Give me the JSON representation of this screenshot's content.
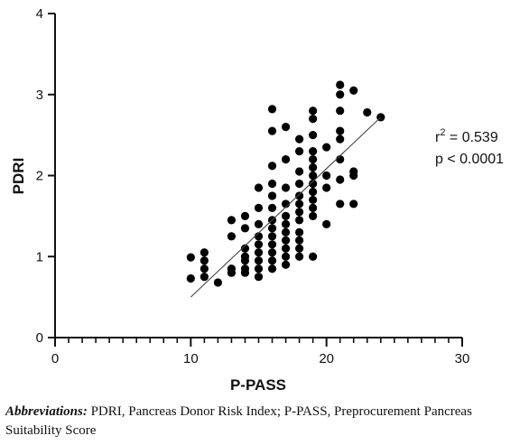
{
  "chart_data": {
    "type": "scatter",
    "xlabel": "P-PASS",
    "ylabel": "PDRI",
    "xlim": [
      0,
      30
    ],
    "ylim": [
      0,
      4
    ],
    "x_ticks": [
      0,
      10,
      20,
      30
    ],
    "y_ticks": [
      0,
      1,
      2,
      3,
      4
    ],
    "x_minor_step": 1,
    "grid": false,
    "points": [
      [
        10,
        0.99
      ],
      [
        10,
        0.73
      ],
      [
        11,
        1.05
      ],
      [
        11,
        0.95
      ],
      [
        11,
        0.85
      ],
      [
        11,
        0.75
      ],
      [
        12,
        0.68
      ],
      [
        13,
        1.45
      ],
      [
        13,
        1.25
      ],
      [
        13,
        0.85
      ],
      [
        13,
        0.8
      ],
      [
        14,
        1.5
      ],
      [
        14,
        1.35
      ],
      [
        14,
        1.1
      ],
      [
        14,
        1.0
      ],
      [
        14,
        0.95
      ],
      [
        14,
        0.85
      ],
      [
        14,
        0.8
      ],
      [
        15,
        1.85
      ],
      [
        15,
        1.6
      ],
      [
        15,
        1.4
      ],
      [
        15,
        1.25
      ],
      [
        15,
        1.15
      ],
      [
        15,
        1.05
      ],
      [
        15,
        0.95
      ],
      [
        15,
        0.85
      ],
      [
        15,
        0.75
      ],
      [
        16,
        2.82
      ],
      [
        16,
        2.55
      ],
      [
        16,
        2.12
      ],
      [
        16,
        1.9
      ],
      [
        16,
        1.75
      ],
      [
        16,
        1.6
      ],
      [
        16,
        1.45
      ],
      [
        16,
        1.35
      ],
      [
        16,
        1.25
      ],
      [
        16,
        1.15
      ],
      [
        16,
        1.05
      ],
      [
        16,
        0.95
      ],
      [
        16,
        0.85
      ],
      [
        17,
        2.6
      ],
      [
        17,
        2.2
      ],
      [
        17,
        1.85
      ],
      [
        17,
        1.65
      ],
      [
        17,
        1.5
      ],
      [
        17,
        1.4
      ],
      [
        17,
        1.3
      ],
      [
        17,
        1.2
      ],
      [
        17,
        1.1
      ],
      [
        17,
        1.0
      ],
      [
        17,
        0.9
      ],
      [
        18,
        2.45
      ],
      [
        18,
        2.3
      ],
      [
        18,
        2.05
      ],
      [
        18,
        1.9
      ],
      [
        18,
        1.75
      ],
      [
        18,
        1.65
      ],
      [
        18,
        1.55
      ],
      [
        18,
        1.45
      ],
      [
        18,
        1.3
      ],
      [
        18,
        1.2
      ],
      [
        18,
        1.1
      ],
      [
        18,
        1.0
      ],
      [
        19,
        2.8
      ],
      [
        19,
        2.7
      ],
      [
        19,
        2.5
      ],
      [
        19,
        2.3
      ],
      [
        19,
        2.2
      ],
      [
        19,
        2.1
      ],
      [
        19,
        2.0
      ],
      [
        19,
        1.9
      ],
      [
        19,
        1.8
      ],
      [
        19,
        1.7
      ],
      [
        19,
        1.6
      ],
      [
        19,
        1.5
      ],
      [
        19,
        1.0
      ],
      [
        20,
        2.35
      ],
      [
        20,
        2.0
      ],
      [
        20,
        1.85
      ],
      [
        20,
        1.4
      ],
      [
        21,
        3.12
      ],
      [
        21,
        3.0
      ],
      [
        21,
        2.8
      ],
      [
        21,
        2.55
      ],
      [
        21,
        2.45
      ],
      [
        21,
        2.2
      ],
      [
        21,
        1.95
      ],
      [
        21,
        1.65
      ],
      [
        22,
        3.05
      ],
      [
        22,
        2.05
      ],
      [
        22,
        2.0
      ],
      [
        22,
        1.65
      ],
      [
        23,
        2.78
      ],
      [
        24,
        2.72
      ]
    ],
    "trendline": {
      "x1": 10,
      "y1": 0.5,
      "x2": 24,
      "y2": 2.72
    },
    "annotations": {
      "r2_label": "r",
      "r2_exp": "2",
      "r2_value": " = 0.539",
      "p_value": "p < 0.0001"
    }
  },
  "caption": {
    "lead": "Abbreviations:",
    "text": " PDRI, Pancreas Donor Risk Index; P-PASS, Preprocurement Pancreas Suitability Score"
  }
}
